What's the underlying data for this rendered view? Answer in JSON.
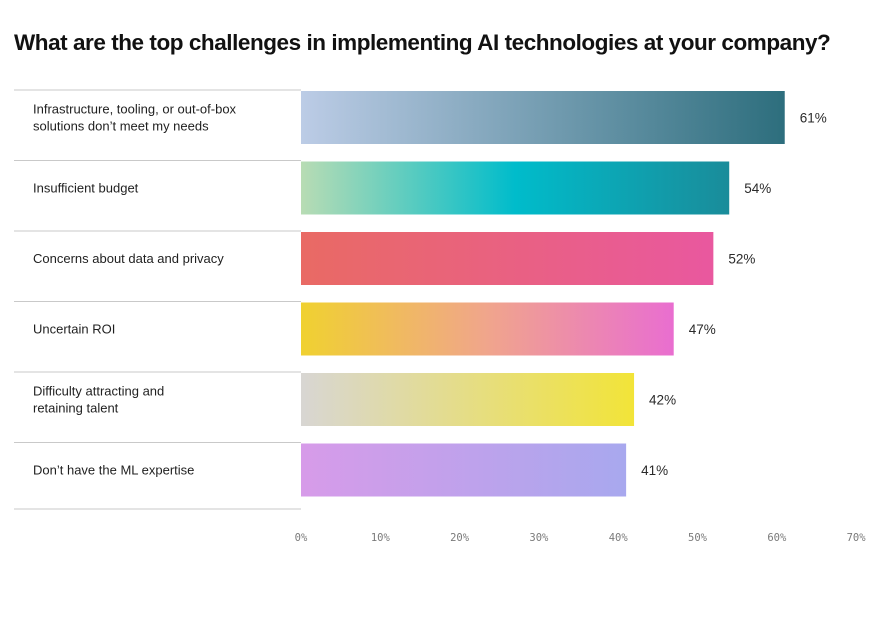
{
  "chart_data": {
    "type": "bar",
    "orientation": "horizontal",
    "title": "What are the top challenges in implementing AI technologies at your company?",
    "categories": [
      "Infrastructure, tooling, or out-of-box solutions don’t meet my needs",
      "Insufficient budget",
      "Concerns about data and privacy",
      "Uncertain ROI",
      "Difficulty attracting and retaining talent",
      "Don’t have the ML expertise"
    ],
    "category_lines": [
      [
        "Infrastructure, tooling, or out-of-box",
        "solutions don’t meet my needs"
      ],
      [
        "Insufficient budget"
      ],
      [
        "Concerns about data and privacy"
      ],
      [
        "Uncertain ROI"
      ],
      [
        "Difficulty attracting and",
        "retaining talent"
      ],
      [
        "Don’t have the ML expertise"
      ]
    ],
    "values": [
      61,
      54,
      52,
      47,
      42,
      41
    ],
    "value_labels": [
      "61%",
      "54%",
      "52%",
      "47%",
      "42%",
      "41%"
    ],
    "xlim": [
      0,
      70
    ],
    "x_ticks": [
      0,
      10,
      20,
      30,
      40,
      50,
      60,
      70
    ],
    "x_tick_labels": [
      "0%",
      "10%",
      "20%",
      "30%",
      "40%",
      "50%",
      "60%",
      "70%"
    ],
    "xlabel": "",
    "ylabel": "",
    "grid": false,
    "legend": "none",
    "bar_gradients": [
      [
        "#bccce6",
        "#2d6e7d"
      ],
      [
        "#b8dcb4",
        "#00bccb",
        "#1a8c9a"
      ],
      [
        "#e96a64",
        "#e9589f"
      ],
      [
        "#f0d130",
        "#f0a58c",
        "#e96ed0"
      ],
      [
        "#d8d6d3",
        "#f2e438"
      ],
      [
        "#d79be9",
        "#a8a8ee"
      ]
    ]
  }
}
